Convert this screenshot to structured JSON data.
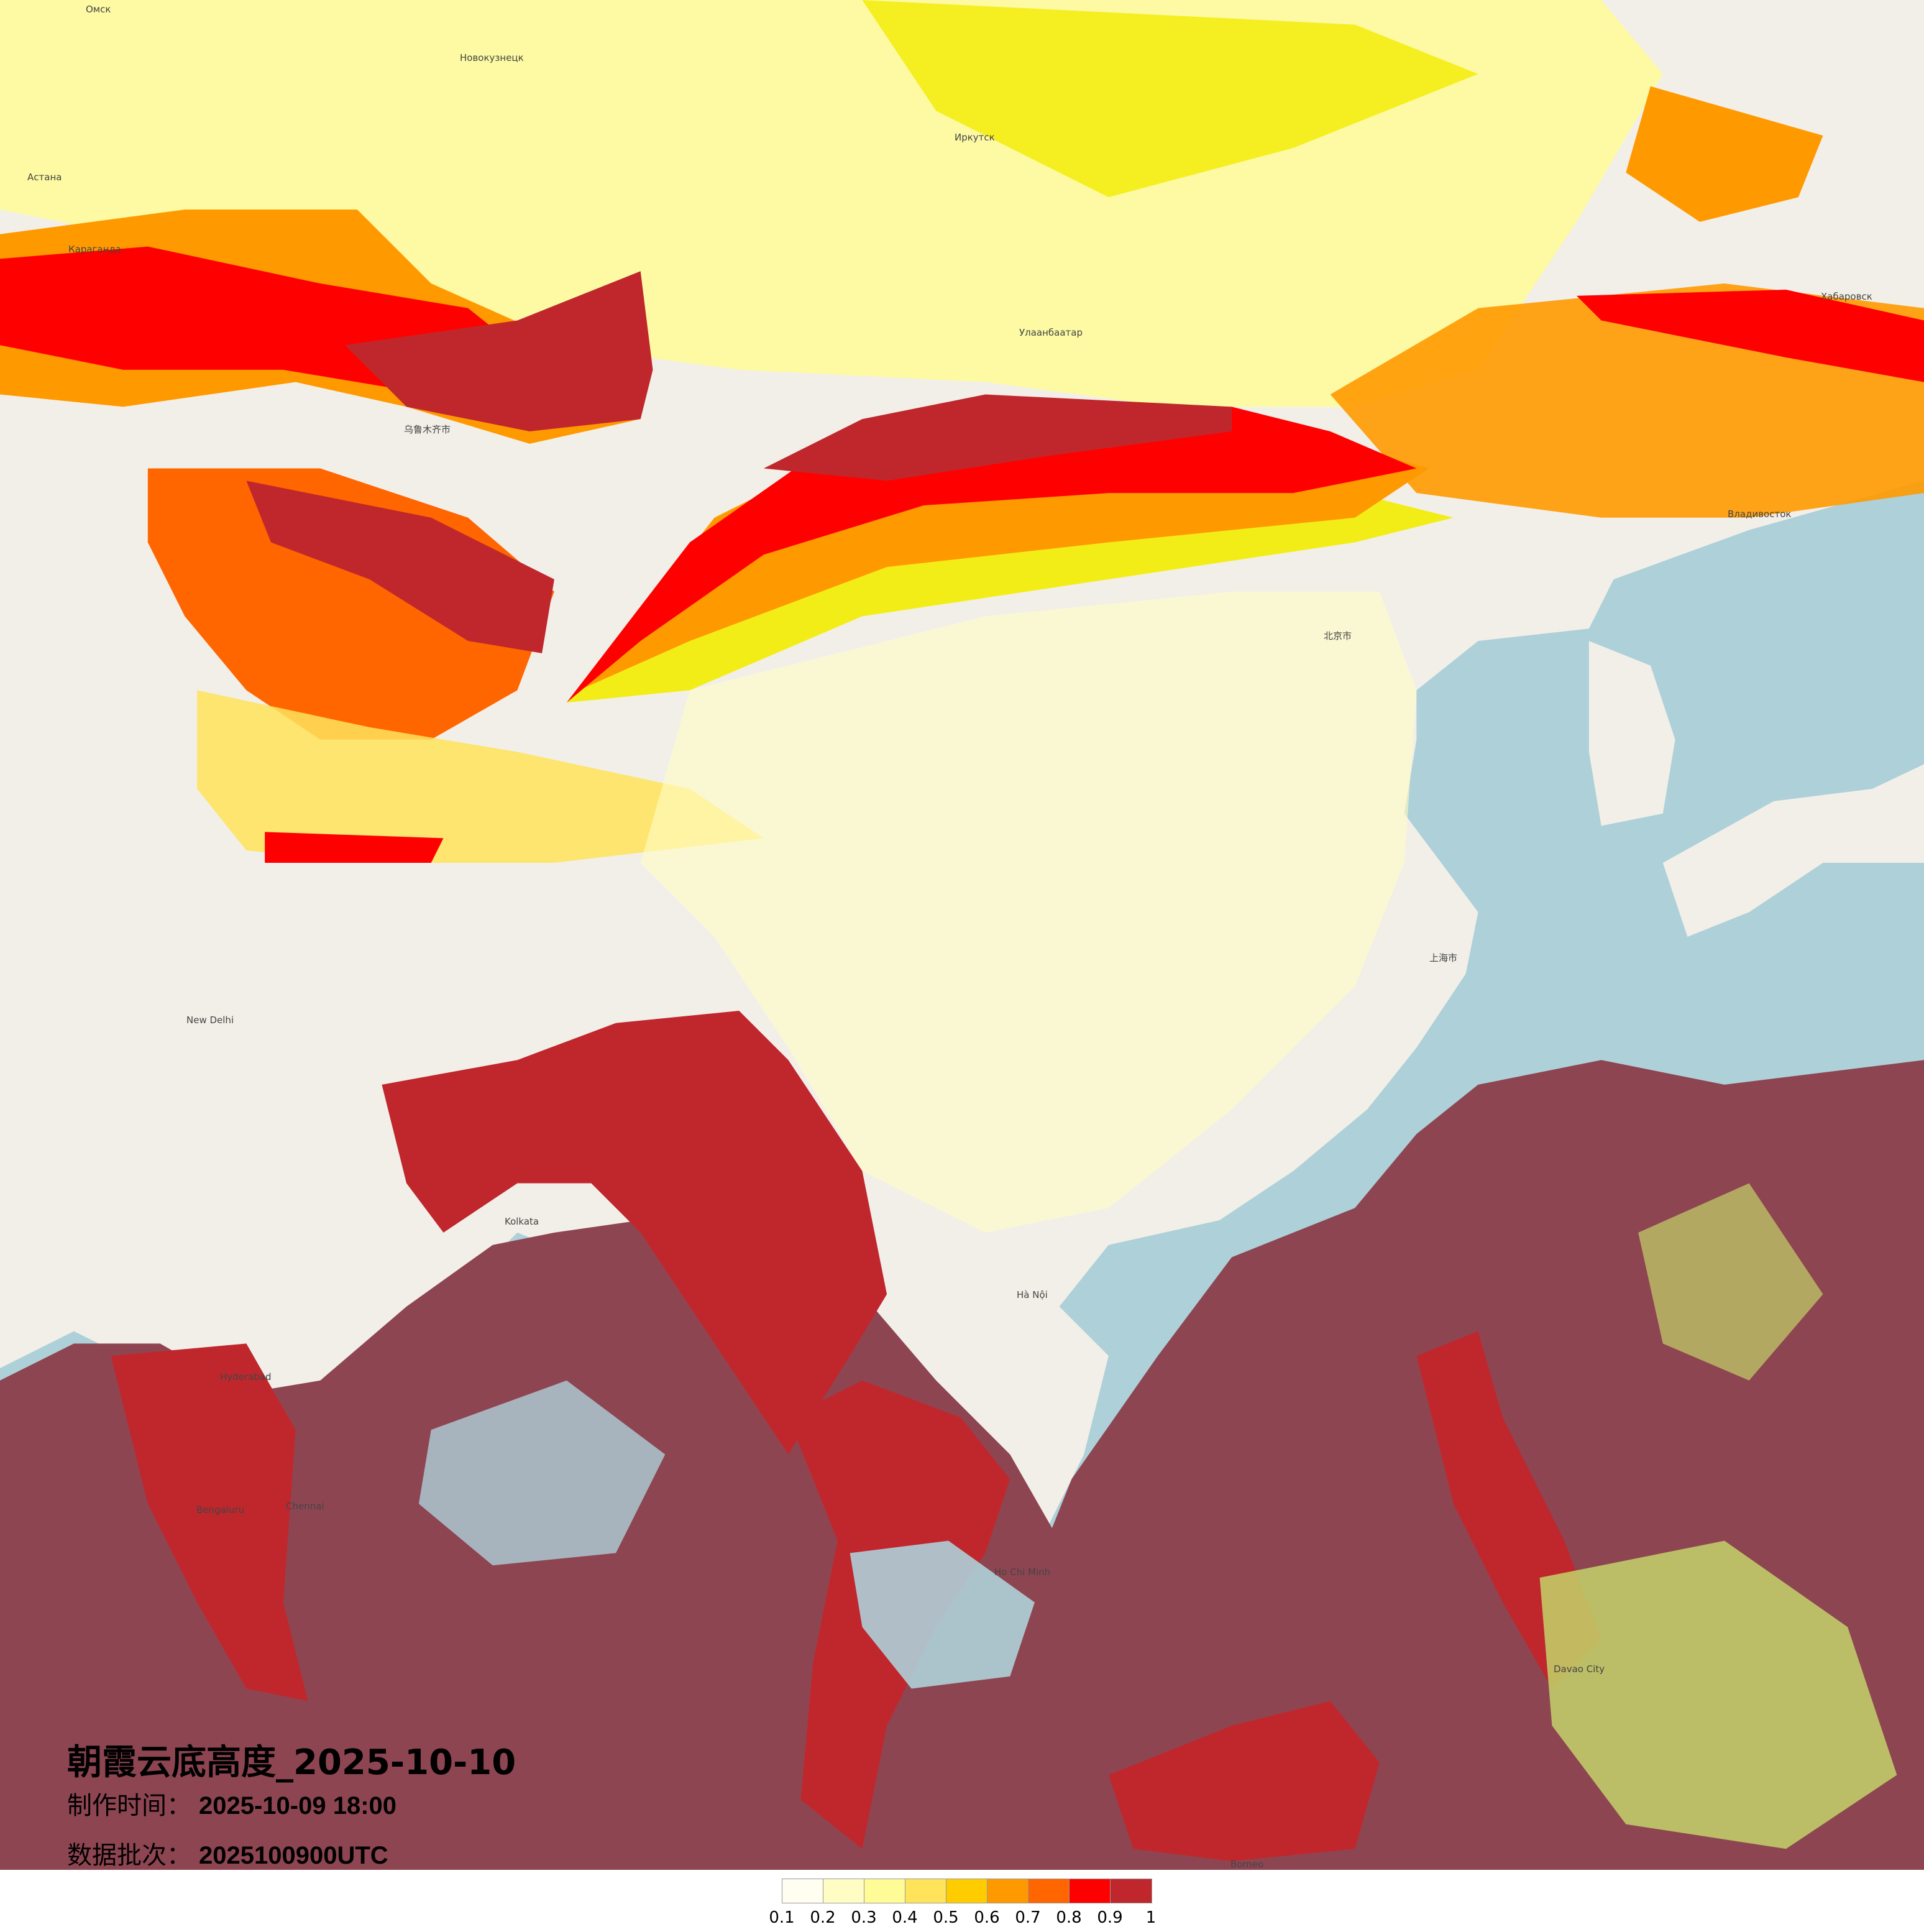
{
  "title": "朝霞云底高度_2025-10-10",
  "production_time": {
    "label": "制作时间：",
    "value": "2025-10-09 18:00"
  },
  "data_batch": {
    "label": "数据批次：",
    "value": "2025100900UTC"
  },
  "legend": {
    "colors": [
      "#fffef0",
      "#fffdc4",
      "#fffb96",
      "#ffe35a",
      "#ffcc00",
      "#ff9900",
      "#ff6600",
      "#ff0000",
      "#c0272d"
    ],
    "labels": [
      "0.1",
      "0.2",
      "0.3",
      "0.4",
      "0.5",
      "0.6",
      "0.7",
      "0.8",
      "0.9",
      "1"
    ]
  },
  "map_colors": {
    "land": "#f2efe9",
    "sea": "#aed0d8",
    "overlay_dark": "#8e4552",
    "overlay_green": "#c3d36a"
  },
  "places": [
    {
      "name": "Омск"
    },
    {
      "name": "Новокузнецк"
    },
    {
      "name": "Иркутск"
    },
    {
      "name": "Улаанбаатар"
    },
    {
      "name": "Астана"
    },
    {
      "name": "Караганда"
    },
    {
      "name": "乌鲁木齐市"
    },
    {
      "name": "New Delhi"
    },
    {
      "name": "Kolkata"
    },
    {
      "name": "Hyderabad"
    },
    {
      "name": "Bengaluru"
    },
    {
      "name": "Chennai"
    },
    {
      "name": "Hà Nội"
    },
    {
      "name": "Ho Chi Minh"
    },
    {
      "name": "北京市"
    },
    {
      "name": "上海市"
    },
    {
      "name": "Владивосток"
    },
    {
      "name": "Хабаровск"
    },
    {
      "name": "Borneo"
    },
    {
      "name": "Davao City"
    }
  ]
}
